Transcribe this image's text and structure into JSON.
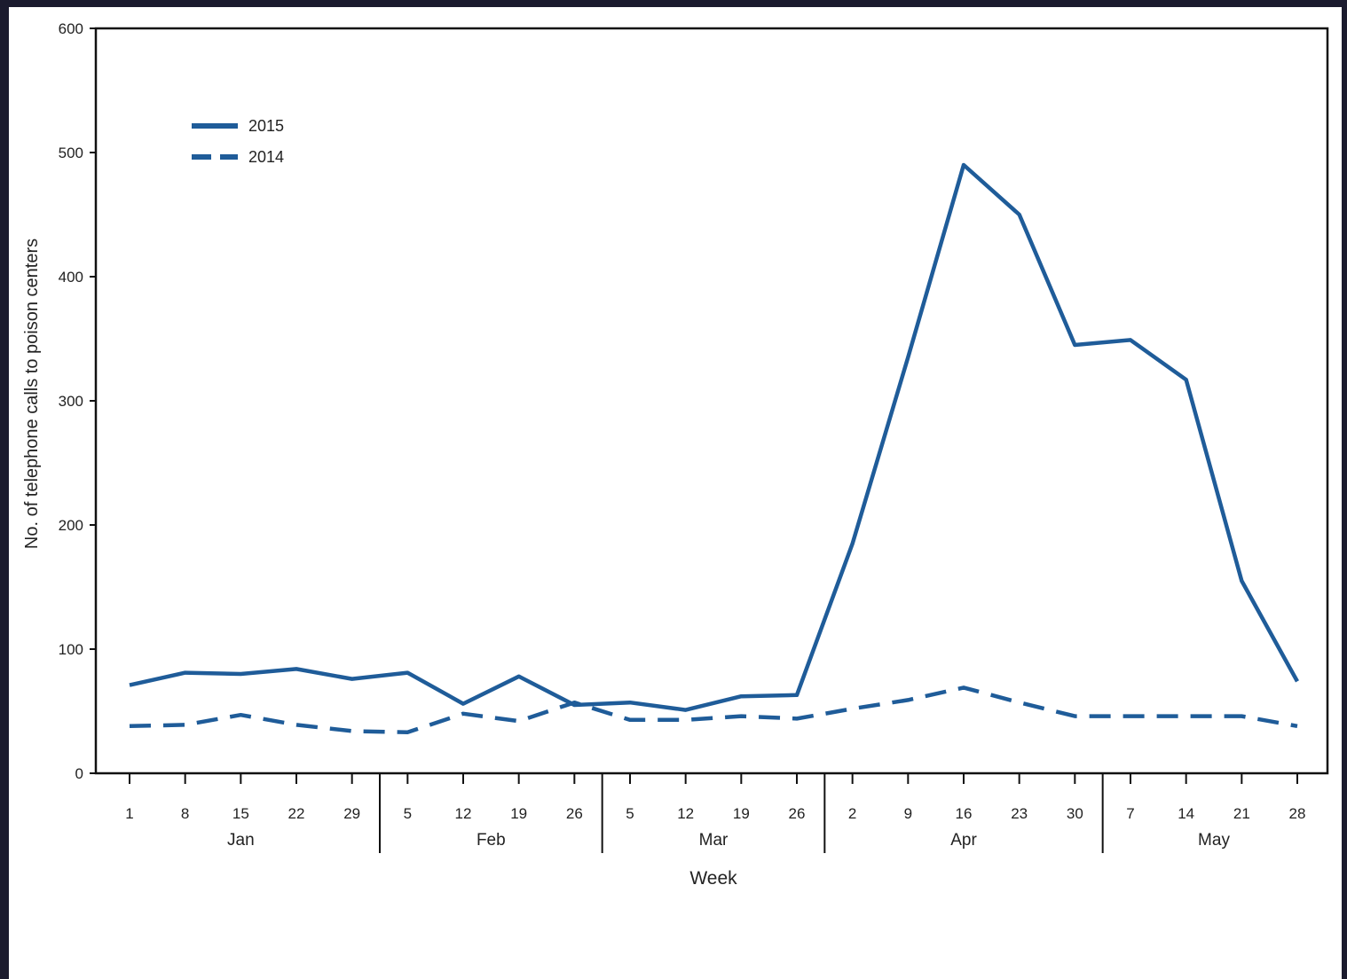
{
  "chart_data": {
    "type": "line",
    "title": "",
    "xlabel": "Week",
    "ylabel": "No. of telephone calls to poison centers",
    "ylim": [
      0,
      600
    ],
    "yticks": [
      0,
      100,
      200,
      300,
      400,
      500,
      600
    ],
    "grid": false,
    "legend_position": "top-left",
    "x": [
      "Jan 1",
      "Jan 8",
      "Jan 15",
      "Jan 22",
      "Jan 29",
      "Feb 5",
      "Feb 12",
      "Feb 19",
      "Feb 26",
      "Mar 5",
      "Mar 12",
      "Mar 19",
      "Mar 26",
      "Apr 2",
      "Apr 9",
      "Apr 16",
      "Apr 23",
      "Apr 30",
      "May 7",
      "May 14",
      "May 21",
      "May 28"
    ],
    "tick_labels": [
      "1",
      "8",
      "15",
      "22",
      "29",
      "5",
      "12",
      "19",
      "26",
      "5",
      "12",
      "19",
      "26",
      "2",
      "9",
      "16",
      "23",
      "30",
      "7",
      "14",
      "21",
      "28"
    ],
    "months": [
      {
        "name": "Jan",
        "start": 0,
        "end": 4
      },
      {
        "name": "Feb",
        "start": 5,
        "end": 8
      },
      {
        "name": "Mar",
        "start": 9,
        "end": 12
      },
      {
        "name": "Apr",
        "start": 13,
        "end": 17
      },
      {
        "name": "May",
        "start": 18,
        "end": 21
      }
    ],
    "series": [
      {
        "name": "2015",
        "style": "solid",
        "color": "#1f5c99",
        "values": [
          71,
          81,
          80,
          84,
          76,
          81,
          56,
          78,
          55,
          57,
          51,
          62,
          63,
          185,
          335,
          490,
          450,
          345,
          349,
          317,
          155,
          74
        ]
      },
      {
        "name": "2014",
        "style": "dashed",
        "color": "#1f5c99",
        "values": [
          38,
          39,
          47,
          39,
          34,
          33,
          48,
          42,
          57,
          43,
          43,
          46,
          44,
          52,
          59,
          69,
          57,
          46,
          46,
          46,
          46,
          38
        ]
      }
    ]
  }
}
